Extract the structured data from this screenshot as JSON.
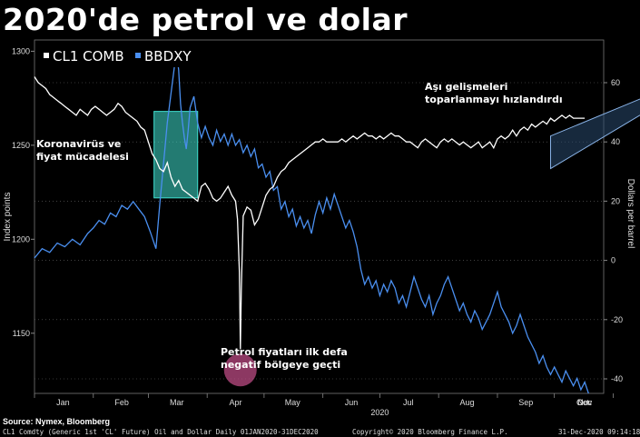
{
  "title": "2020'de petrol ve dolar",
  "source": "Source: Nymex, Bloomberg",
  "footer_left": "CL1 Comdty (Generic 1st 'CL' Future) Oil and Dollar  Daily 01JAN2020-31DEC2020",
  "footer_center": "Copyright© 2020 Bloomberg Finance L.P.",
  "footer_right": "31-Dec-2020 09:14:18",
  "annotations": {
    "corona": "Koronavirüs ve\nfiyat mücadelesi",
    "vaccine": "Aşı gelişmeleri\ntoparlanmayı hızlandırdı",
    "negative": "Petrol fiyatları ilk defa\nnegatif bölgeye geçti"
  },
  "colors": {
    "oil": "#ffffff",
    "dxy": "#4a8ff0",
    "highlight_box": "#40e0d0",
    "negative_circle": "#c8508c",
    "channel": "#8ab4e8"
  },
  "chart_data": {
    "type": "line",
    "xlabel": "2020",
    "ylabel_left": "Index points",
    "ylabel_right": "Dollars per barrel",
    "x_tick_labels": [
      "Jan",
      "Feb",
      "Mar",
      "Apr",
      "May",
      "Jun",
      "Jul",
      "Aug",
      "Sep",
      "Oct",
      "Nov",
      "Dec"
    ],
    "left_axis": {
      "ylim": [
        1118,
        1306
      ],
      "ticks": [
        1150,
        1200,
        1250,
        1300
      ]
    },
    "right_axis": {
      "ylim": [
        -40,
        60
      ],
      "ticks": [
        -40,
        -20,
        0,
        20,
        40,
        60
      ]
    },
    "legend": [
      "CL1 COMB",
      "BBDXY"
    ],
    "series": [
      {
        "name": "BBDXY",
        "axis": "left",
        "points": [
          [
            0,
            1190
          ],
          [
            4,
            1195
          ],
          [
            8,
            1193
          ],
          [
            12,
            1198
          ],
          [
            16,
            1196
          ],
          [
            20,
            1200
          ],
          [
            24,
            1197
          ],
          [
            28,
            1203
          ],
          [
            31,
            1206
          ],
          [
            34,
            1210
          ],
          [
            37,
            1208
          ],
          [
            40,
            1214
          ],
          [
            43,
            1212
          ],
          [
            46,
            1218
          ],
          [
            49,
            1216
          ],
          [
            52,
            1220
          ],
          [
            55,
            1216
          ],
          [
            58,
            1212
          ],
          [
            61,
            1204
          ],
          [
            64,
            1195
          ],
          [
            66,
            1218
          ],
          [
            68,
            1240
          ],
          [
            70,
            1262
          ],
          [
            72,
            1278
          ],
          [
            74,
            1294
          ],
          [
            75,
            1298
          ],
          [
            76,
            1290
          ],
          [
            77,
            1272
          ],
          [
            78,
            1262
          ],
          [
            79,
            1254
          ],
          [
            80,
            1248
          ],
          [
            81,
            1258
          ],
          [
            82,
            1270
          ],
          [
            84,
            1276
          ],
          [
            86,
            1262
          ],
          [
            88,
            1254
          ],
          [
            90,
            1260
          ],
          [
            92,
            1254
          ],
          [
            94,
            1250
          ],
          [
            96,
            1258
          ],
          [
            98,
            1252
          ],
          [
            100,
            1256
          ],
          [
            102,
            1250
          ],
          [
            104,
            1256
          ],
          [
            106,
            1250
          ],
          [
            108,
            1253
          ],
          [
            110,
            1246
          ],
          [
            112,
            1250
          ],
          [
            114,
            1244
          ],
          [
            116,
            1248
          ],
          [
            118,
            1238
          ],
          [
            120,
            1240
          ],
          [
            122,
            1233
          ],
          [
            124,
            1236
          ],
          [
            126,
            1226
          ],
          [
            128,
            1228
          ],
          [
            130,
            1216
          ],
          [
            132,
            1220
          ],
          [
            134,
            1212
          ],
          [
            136,
            1216
          ],
          [
            138,
            1207
          ],
          [
            140,
            1212
          ],
          [
            142,
            1206
          ],
          [
            144,
            1210
          ],
          [
            146,
            1203
          ],
          [
            148,
            1213
          ],
          [
            150,
            1220
          ],
          [
            152,
            1214
          ],
          [
            154,
            1222
          ],
          [
            156,
            1216
          ],
          [
            158,
            1224
          ],
          [
            160,
            1218
          ],
          [
            162,
            1212
          ],
          [
            164,
            1206
          ],
          [
            166,
            1210
          ],
          [
            168,
            1204
          ],
          [
            170,
            1196
          ],
          [
            172,
            1184
          ],
          [
            174,
            1176
          ],
          [
            176,
            1180
          ],
          [
            178,
            1174
          ],
          [
            180,
            1178
          ],
          [
            182,
            1170
          ],
          [
            184,
            1176
          ],
          [
            186,
            1172
          ],
          [
            188,
            1178
          ],
          [
            190,
            1174
          ],
          [
            192,
            1166
          ],
          [
            194,
            1170
          ],
          [
            196,
            1164
          ],
          [
            198,
            1172
          ],
          [
            200,
            1180
          ],
          [
            202,
            1174
          ],
          [
            204,
            1168
          ],
          [
            206,
            1164
          ],
          [
            208,
            1170
          ],
          [
            210,
            1160
          ],
          [
            212,
            1166
          ],
          [
            214,
            1170
          ],
          [
            216,
            1176
          ],
          [
            218,
            1180
          ],
          [
            220,
            1174
          ],
          [
            222,
            1168
          ],
          [
            224,
            1162
          ],
          [
            226,
            1166
          ],
          [
            228,
            1160
          ],
          [
            230,
            1156
          ],
          [
            232,
            1162
          ],
          [
            234,
            1158
          ],
          [
            236,
            1152
          ],
          [
            238,
            1156
          ],
          [
            240,
            1160
          ],
          [
            242,
            1166
          ],
          [
            244,
            1172
          ],
          [
            246,
            1164
          ],
          [
            248,
            1160
          ],
          [
            250,
            1156
          ],
          [
            252,
            1150
          ],
          [
            254,
            1154
          ],
          [
            256,
            1160
          ],
          [
            258,
            1154
          ],
          [
            260,
            1148
          ],
          [
            262,
            1144
          ],
          [
            264,
            1140
          ],
          [
            266,
            1134
          ],
          [
            268,
            1138
          ],
          [
            270,
            1132
          ],
          [
            272,
            1128
          ],
          [
            274,
            1132
          ],
          [
            276,
            1128
          ],
          [
            278,
            1124
          ],
          [
            280,
            1130
          ],
          [
            282,
            1126
          ],
          [
            284,
            1122
          ],
          [
            286,
            1126
          ],
          [
            288,
            1120
          ],
          [
            290,
            1124
          ],
          [
            292,
            1118
          ]
        ]
      },
      {
        "name": "CL1 COMB",
        "axis": "right",
        "points": [
          [
            0,
            62
          ],
          [
            2,
            60
          ],
          [
            4,
            59
          ],
          [
            6,
            58
          ],
          [
            8,
            56
          ],
          [
            10,
            55
          ],
          [
            12,
            54
          ],
          [
            14,
            53
          ],
          [
            16,
            52
          ],
          [
            18,
            51
          ],
          [
            20,
            50
          ],
          [
            22,
            49
          ],
          [
            24,
            51
          ],
          [
            26,
            50
          ],
          [
            28,
            49
          ],
          [
            30,
            51
          ],
          [
            32,
            52
          ],
          [
            34,
            51
          ],
          [
            36,
            50
          ],
          [
            38,
            49
          ],
          [
            40,
            50
          ],
          [
            42,
            51
          ],
          [
            44,
            53
          ],
          [
            46,
            52
          ],
          [
            48,
            50
          ],
          [
            50,
            49
          ],
          [
            52,
            48
          ],
          [
            54,
            47
          ],
          [
            56,
            45
          ],
          [
            58,
            44
          ],
          [
            60,
            40
          ],
          [
            62,
            36
          ],
          [
            64,
            34
          ],
          [
            66,
            31
          ],
          [
            68,
            30
          ],
          [
            70,
            33
          ],
          [
            72,
            28
          ],
          [
            74,
            25
          ],
          [
            76,
            27
          ],
          [
            78,
            24
          ],
          [
            80,
            23
          ],
          [
            82,
            22
          ],
          [
            84,
            21
          ],
          [
            86,
            20
          ],
          [
            88,
            25
          ],
          [
            90,
            26
          ],
          [
            92,
            24
          ],
          [
            94,
            21
          ],
          [
            96,
            20
          ],
          [
            98,
            21
          ],
          [
            100,
            23
          ],
          [
            102,
            25
          ],
          [
            104,
            22
          ],
          [
            106,
            20
          ],
          [
            107,
            14
          ],
          [
            108,
            -4
          ],
          [
            108.5,
            -30
          ],
          [
            109,
            -10
          ],
          [
            110,
            15
          ],
          [
            112,
            18
          ],
          [
            114,
            17
          ],
          [
            116,
            12
          ],
          [
            118,
            14
          ],
          [
            120,
            18
          ],
          [
            122,
            22
          ],
          [
            124,
            24
          ],
          [
            126,
            25
          ],
          [
            128,
            28
          ],
          [
            130,
            30
          ],
          [
            132,
            31
          ],
          [
            134,
            33
          ],
          [
            136,
            34
          ],
          [
            138,
            35
          ],
          [
            140,
            36
          ],
          [
            142,
            37
          ],
          [
            144,
            38
          ],
          [
            146,
            39
          ],
          [
            148,
            40
          ],
          [
            150,
            40
          ],
          [
            152,
            41
          ],
          [
            154,
            40
          ],
          [
            156,
            40
          ],
          [
            158,
            40
          ],
          [
            160,
            40
          ],
          [
            162,
            41
          ],
          [
            164,
            40
          ],
          [
            166,
            41
          ],
          [
            168,
            42
          ],
          [
            170,
            41
          ],
          [
            172,
            42
          ],
          [
            174,
            43
          ],
          [
            176,
            42
          ],
          [
            178,
            42
          ],
          [
            180,
            41
          ],
          [
            182,
            42
          ],
          [
            184,
            41
          ],
          [
            186,
            42
          ],
          [
            188,
            43
          ],
          [
            190,
            42
          ],
          [
            192,
            42
          ],
          [
            194,
            41
          ],
          [
            196,
            40
          ],
          [
            198,
            40
          ],
          [
            200,
            39
          ],
          [
            202,
            38
          ],
          [
            204,
            40
          ],
          [
            206,
            41
          ],
          [
            208,
            40
          ],
          [
            210,
            39
          ],
          [
            212,
            38
          ],
          [
            214,
            40
          ],
          [
            216,
            41
          ],
          [
            218,
            40
          ],
          [
            220,
            41
          ],
          [
            222,
            40
          ],
          [
            224,
            39
          ],
          [
            226,
            40
          ],
          [
            228,
            39
          ],
          [
            230,
            38
          ],
          [
            232,
            39
          ],
          [
            234,
            40
          ],
          [
            236,
            38
          ],
          [
            238,
            39
          ],
          [
            240,
            40
          ],
          [
            242,
            38
          ],
          [
            244,
            41
          ],
          [
            246,
            42
          ],
          [
            248,
            41
          ],
          [
            250,
            42
          ],
          [
            252,
            44
          ],
          [
            254,
            42
          ],
          [
            256,
            44
          ],
          [
            258,
            45
          ],
          [
            260,
            44
          ],
          [
            262,
            46
          ],
          [
            264,
            45
          ],
          [
            266,
            46
          ],
          [
            268,
            47
          ],
          [
            270,
            46
          ],
          [
            272,
            48
          ],
          [
            274,
            47
          ],
          [
            276,
            48
          ],
          [
            278,
            49
          ],
          [
            280,
            48
          ],
          [
            282,
            49
          ],
          [
            284,
            48
          ],
          [
            286,
            48
          ],
          [
            288,
            48
          ],
          [
            290,
            48
          ]
        ]
      }
    ],
    "highlight_box": {
      "x": [
        63,
        86
      ],
      "y_left": [
        1222,
        1268
      ]
    },
    "negative_marker": {
      "x": 108.5,
      "y_right": -37
    },
    "vaccine_channel": {
      "x": [
        272,
        340
      ],
      "y_right_low": [
        31,
        57
      ],
      "y_right_high": [
        42,
        60
      ]
    }
  }
}
